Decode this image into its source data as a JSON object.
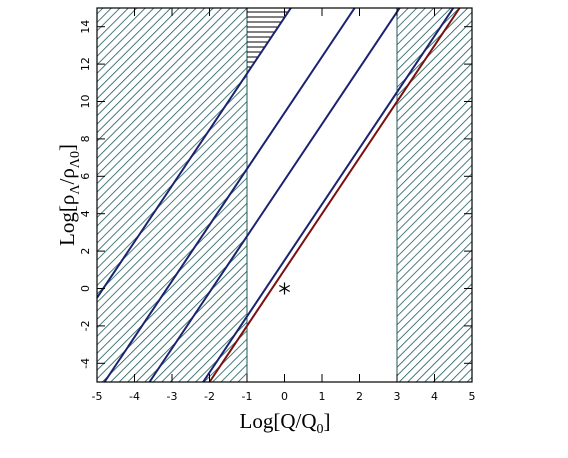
{
  "chart_data": {
    "type": "line",
    "xlabel": [
      "Log[Q/Q",
      "0",
      "]"
    ],
    "ylabel": [
      "Log[ρ",
      "Λ",
      "/ρ",
      "Λ0",
      "]"
    ],
    "xlim": [
      -5,
      5
    ],
    "xticks": [
      -5,
      -4,
      -3,
      -2,
      -1,
      0,
      1,
      2,
      3,
      4,
      5
    ],
    "ylim": [
      -5,
      15
    ],
    "yticks": [
      -4,
      -2,
      0,
      2,
      4,
      6,
      8,
      10,
      12,
      14
    ],
    "regions": [
      {
        "hatch": "diagonal",
        "color": "#1d5a5a",
        "x": [
          -5,
          -1
        ]
      },
      {
        "hatch": "diagonal",
        "color": "#1d5a5a",
        "x": [
          3,
          5
        ]
      },
      {
        "hatch": "horizontal",
        "color": "#000000",
        "x": [
          -1,
          -1,
          0.17
        ],
        "y": [
          11.5,
          15,
          15
        ]
      }
    ],
    "series": [
      {
        "color": "#1a2370",
        "x": [
          -5,
          0.17
        ],
        "values": [
          -0.5,
          15
        ]
      },
      {
        "color": "#1a2370",
        "x": [
          -4.8,
          1.87
        ],
        "values": [
          -5,
          15
        ]
      },
      {
        "color": "#1a2370",
        "x": [
          -3.6,
          3.07
        ],
        "values": [
          -5,
          15
        ]
      },
      {
        "color": "#1a2370",
        "x": [
          -2.17,
          4.5
        ],
        "values": [
          -5,
          15
        ]
      },
      {
        "color": "#7a1010",
        "x": [
          -2,
          4.67
        ],
        "values": [
          -5,
          15
        ]
      }
    ],
    "points": {
      "x": [
        0
      ],
      "values": [
        0
      ],
      "marker": "asterisk",
      "color": "#000000"
    }
  }
}
